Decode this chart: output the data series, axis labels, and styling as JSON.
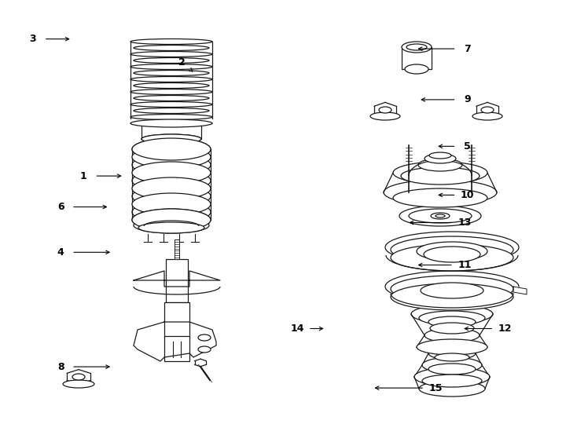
{
  "bg_color": "#ffffff",
  "line_color": "#1a1a1a",
  "lw": 0.9,
  "figsize": [
    7.34,
    5.4
  ],
  "dpi": 100,
  "labels": [
    [
      1,
      0.145,
      0.415,
      0.215,
      0.415
    ],
    [
      2,
      0.315,
      0.148,
      0.335,
      0.17
    ],
    [
      3,
      0.057,
      0.092,
      0.125,
      0.092
    ],
    [
      4,
      0.105,
      0.595,
      0.195,
      0.595
    ],
    [
      5,
      0.81,
      0.345,
      0.755,
      0.345
    ],
    [
      6,
      0.105,
      0.488,
      0.19,
      0.488
    ],
    [
      7,
      0.81,
      0.115,
      0.72,
      0.115
    ],
    [
      8,
      0.105,
      0.865,
      0.195,
      0.865
    ],
    [
      9,
      0.81,
      0.235,
      0.725,
      0.235
    ],
    [
      10,
      0.81,
      0.46,
      0.755,
      0.46
    ],
    [
      11,
      0.805,
      0.625,
      0.72,
      0.625
    ],
    [
      12,
      0.875,
      0.775,
      0.8,
      0.775
    ],
    [
      13,
      0.805,
      0.525,
      0.705,
      0.525
    ],
    [
      14,
      0.515,
      0.775,
      0.565,
      0.775
    ],
    [
      15,
      0.755,
      0.915,
      0.645,
      0.915
    ]
  ]
}
